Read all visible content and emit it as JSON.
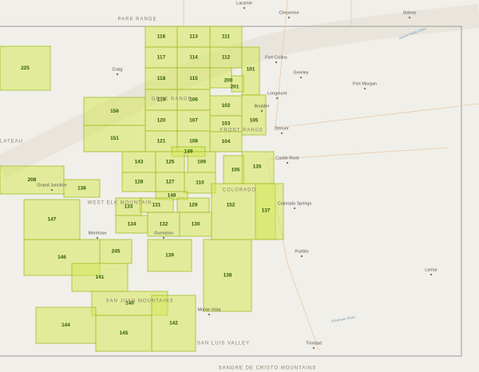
{
  "units": [
    "116",
    "113",
    "111",
    "117",
    "114",
    "112",
    "101",
    "118",
    "115",
    "200",
    "201",
    "119",
    "106",
    "102",
    "156",
    "120",
    "107",
    "103",
    "105",
    "151",
    "121",
    "108",
    "104",
    "149",
    "143",
    "125",
    "109",
    "135",
    "105",
    "208",
    "128",
    "127",
    "110",
    "136",
    "148",
    "131",
    "129",
    "152",
    "137",
    "133",
    "147",
    "134",
    "132",
    "130",
    "245",
    "146",
    "139",
    "138",
    "141",
    "140",
    "144",
    "142",
    "145",
    "225"
  ],
  "cities": [
    "Laramie",
    "Cheyenne",
    "Sidney",
    "Fort Collins",
    "Greeley",
    "Fort Morgan",
    "Longmont",
    "Boulder",
    "Denver",
    "Castle Rock",
    "Colorado Springs",
    "Pueblo",
    "Lamar",
    "Monte Vista",
    "Trinidad",
    "Craig",
    "Grand Junction",
    "Montrose",
    "Gunnison"
  ],
  "regions": [
    "PARK RANGE",
    "FRONT RANGE",
    "SAN LUIS VALLEY",
    "SANGRE DE CRISTO MOUNTAINS",
    "SAN JUAN MOUNTAINS",
    "WEST ELK MOUNTAIN",
    "COLORADO",
    "PLATEAU",
    "GORE RANGE"
  ],
  "rivers": [
    "South Platte River",
    "Arkansas River"
  ]
}
